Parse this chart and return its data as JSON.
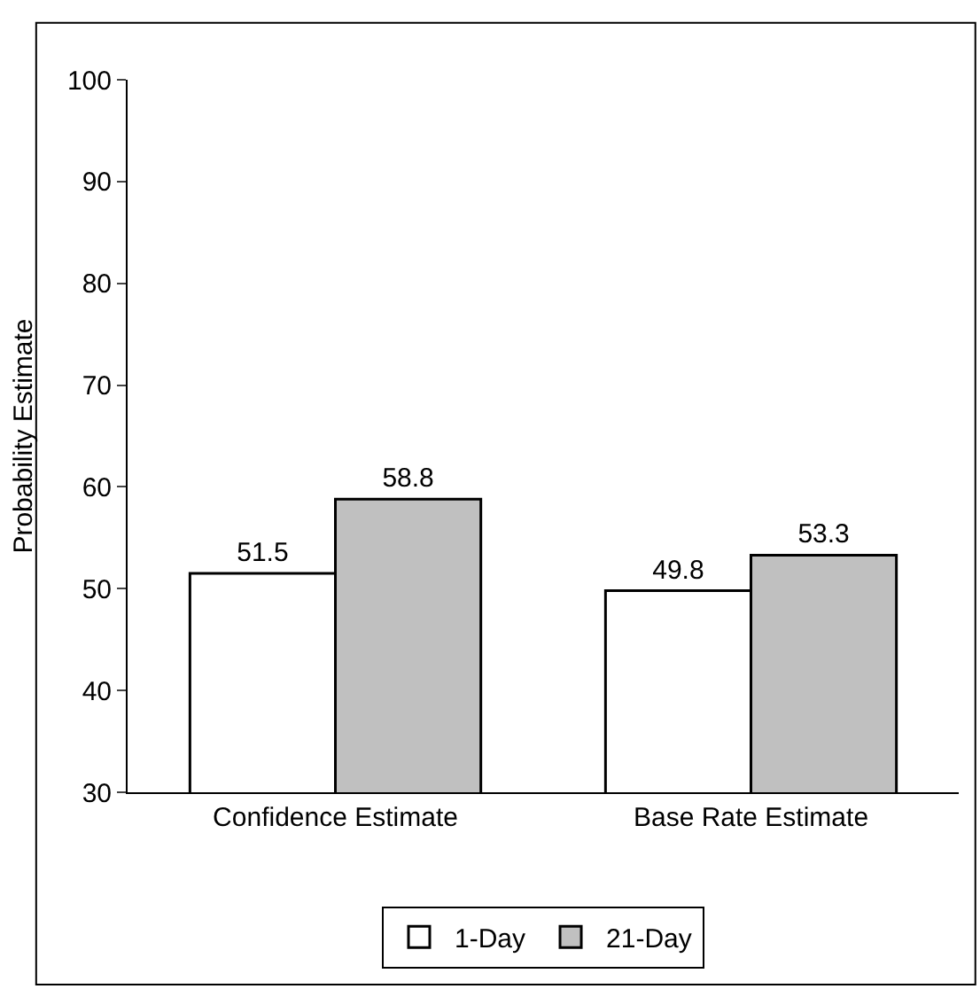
{
  "chart_data": {
    "type": "bar",
    "ylabel": "Probability Estimate",
    "categories": [
      "Confidence Estimate",
      "Base Rate Estimate"
    ],
    "series": [
      {
        "name": "1-Day",
        "color": "#ffffff",
        "values": [
          51.5,
          49.8
        ]
      },
      {
        "name": "21-Day",
        "color": "#c0c0c0",
        "values": [
          58.8,
          53.3
        ]
      }
    ],
    "ylim": [
      30,
      100
    ],
    "yticks": [
      30,
      40,
      50,
      60,
      70,
      80,
      90,
      100
    ],
    "grid": false,
    "legend": "bottom",
    "data_labels": true
  }
}
